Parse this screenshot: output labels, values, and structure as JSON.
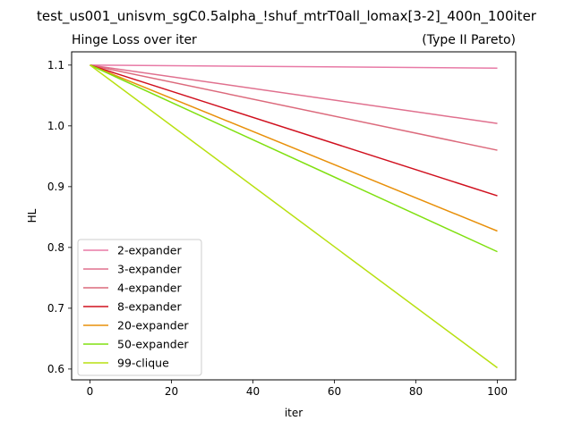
{
  "figure_title": "test_us001_unisvm_sgC0.5alpha_!shuf_mtrT0all_lomax[3-2]_400n_100iter",
  "chart_data": {
    "type": "line",
    "title": "Hinge Loss over iter",
    "subtitle": "(Type II Pareto)",
    "xlabel": "iter",
    "ylabel": "HL",
    "xlim": [
      -4.5,
      104.5
    ],
    "ylim": [
      0.5822,
      1.1218
    ],
    "xticks": [
      0,
      20,
      40,
      60,
      80,
      100
    ],
    "yticks": [
      0.6,
      0.7,
      0.8,
      0.9,
      1.0,
      1.1
    ],
    "xtick_labels": [
      "0",
      "20",
      "40",
      "60",
      "80",
      "100"
    ],
    "ytick_labels": [
      "0.6",
      "0.7",
      "0.8",
      "0.9",
      "1.0",
      "1.1"
    ],
    "grid": false,
    "legend_position": "lower-left",
    "x": [
      0,
      100
    ],
    "series": [
      {
        "name": "2-expander",
        "color": "#e87aa6",
        "values": [
          1.1,
          1.095
        ]
      },
      {
        "name": "3-expander",
        "color": "#e0708e",
        "values": [
          1.1,
          1.004
        ]
      },
      {
        "name": "4-expander",
        "color": "#dc6a7c",
        "values": [
          1.1,
          0.96
        ]
      },
      {
        "name": "8-expander",
        "color": "#d0101e",
        "values": [
          1.1,
          0.885
        ]
      },
      {
        "name": "20-expander",
        "color": "#e8900a",
        "values": [
          1.1,
          0.827
        ]
      },
      {
        "name": "50-expander",
        "color": "#80e010",
        "values": [
          1.1,
          0.793
        ]
      },
      {
        "name": "99-clique",
        "color": "#b8e010",
        "values": [
          1.1,
          0.602
        ]
      }
    ]
  }
}
